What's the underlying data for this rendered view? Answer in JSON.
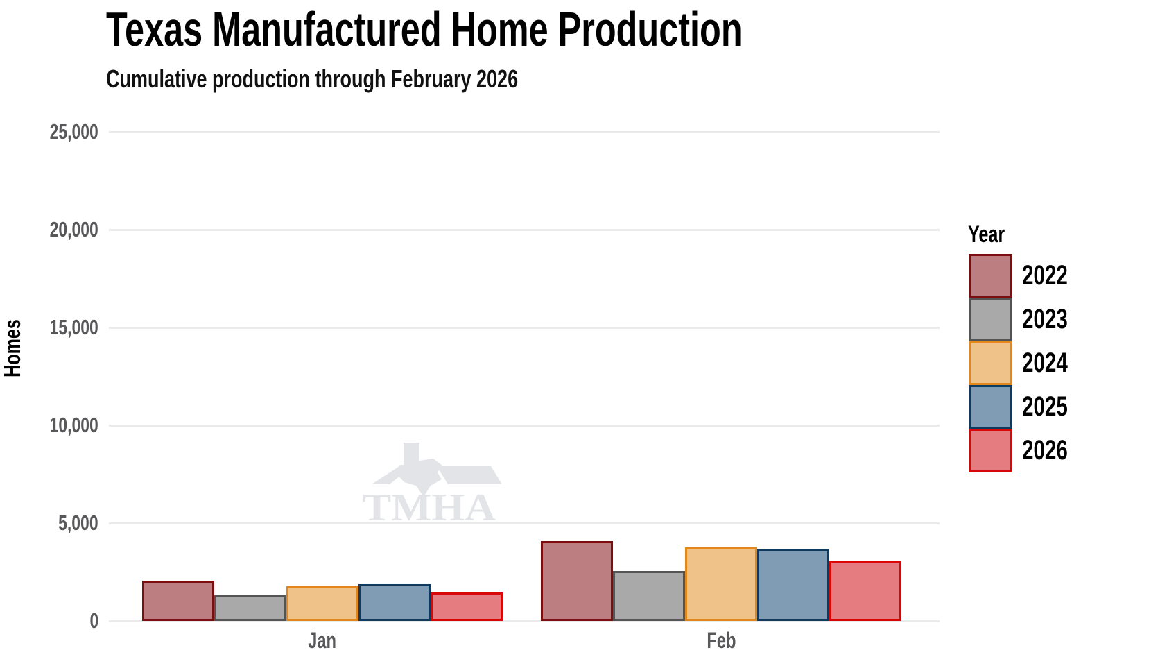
{
  "header": {
    "title": "Texas Manufactured Home Production",
    "subtitle": "Cumulative production through February 2026"
  },
  "watermark": {
    "text": "TMHA",
    "color": "#e3e4e8"
  },
  "chart_data": {
    "type": "bar",
    "title": "Texas Manufactured Home Production",
    "subtitle": "Cumulative production through February 2026",
    "categories": [
      "Jan",
      "Feb"
    ],
    "series": [
      {
        "name": "2022",
        "values": [
          2060,
          4070
        ],
        "fill": "#bc7e81",
        "stroke": "#7d0e10"
      },
      {
        "name": "2023",
        "values": [
          1310,
          2540
        ],
        "fill": "#a9a9a9",
        "stroke": "#545454"
      },
      {
        "name": "2024",
        "values": [
          1780,
          3750
        ],
        "fill": "#eec288",
        "stroke": "#e2871a"
      },
      {
        "name": "2025",
        "values": [
          1890,
          3680
        ],
        "fill": "#7f9cb4",
        "stroke": "#0e3a5f"
      },
      {
        "name": "2026",
        "values": [
          1450,
          3070
        ],
        "fill": "#e57d80",
        "stroke": "#d90808"
      }
    ],
    "xlabel": "",
    "ylabel": "Homes",
    "ylim": [
      0,
      25000
    ],
    "yticks": [
      0,
      5000,
      10000,
      15000,
      20000,
      25000
    ],
    "ytick_labels": [
      "0",
      "5,000",
      "10,000",
      "15,000",
      "20,000",
      "25,000"
    ],
    "grid": "horizontal",
    "gridline_color": "#eaeaea",
    "tick_label_color": "#58585a",
    "legend_title": "Year",
    "legend_position": "right"
  }
}
